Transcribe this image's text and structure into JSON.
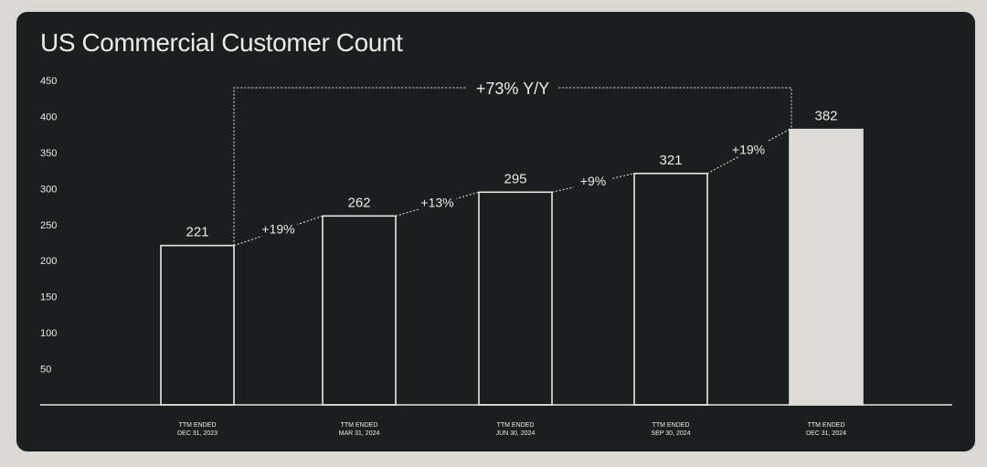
{
  "title": "US Commercial Customer Count",
  "colors": {
    "background": "#d9d8d2",
    "panel": "#1b1e1e",
    "text": "#ebebe6",
    "bar_outline": "#e8e8e2",
    "highlight_bar": "#dddcd6"
  },
  "chart_data": {
    "type": "bar",
    "title": "US Commercial Customer Count",
    "categories": [
      [
        "TTM ENDED",
        "DEC 31, 2023"
      ],
      [
        "TTM ENDED",
        "MAR 31, 2024"
      ],
      [
        "TTM ENDED",
        "JUN 30, 2024"
      ],
      [
        "TTM ENDED",
        "SEP 30, 2024"
      ],
      [
        "TTM ENDED",
        "DEC 31, 2024"
      ]
    ],
    "values": [
      221,
      262,
      295,
      321,
      382
    ],
    "value_labels": [
      "221",
      "262",
      "295",
      "321",
      "382"
    ],
    "highlight_index": 4,
    "growth_labels": [
      "+19%",
      "+13%",
      "+9%",
      "+19%"
    ],
    "overall_growth_label": "+73% Y/Y",
    "yticks": [
      50,
      100,
      150,
      200,
      250,
      300,
      350,
      400,
      450
    ],
    "ylim": [
      0,
      450
    ],
    "grid": false,
    "legend": "none"
  }
}
